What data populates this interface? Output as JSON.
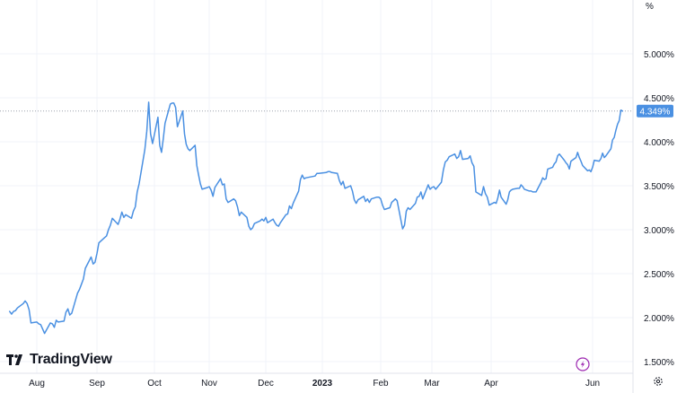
{
  "chart_data": {
    "type": "line",
    "unit_label": "%",
    "brand": "TradingView",
    "y_ticks": [
      "1.500%",
      "2.000%",
      "2.500%",
      "3.000%",
      "3.500%",
      "4.000%",
      "4.500%",
      "5.000%"
    ],
    "y_tick_values": [
      1.5,
      2.0,
      2.5,
      3.0,
      3.5,
      4.0,
      4.5,
      5.0
    ],
    "ylim": [
      1.45,
      5.5
    ],
    "x_ticks": [
      "Aug",
      "Sep",
      "Oct",
      "Nov",
      "Dec",
      "2023",
      "Feb",
      "Mar",
      "Apr",
      "Jun"
    ],
    "x_tick_dates": [
      "2022-08-01",
      "2022-09-01",
      "2022-10-01",
      "2022-11-01",
      "2022-12-01",
      "2023-01-01",
      "2023-02-01",
      "2023-03-01",
      "2023-04-01",
      "2023-06-01"
    ],
    "xlim": [
      "2022-07-18",
      "2023-06-19"
    ],
    "last_value_label": "4.349%",
    "last_value": 4.349,
    "line_color": "#4a90e2",
    "label_color": "#4a90e2",
    "grid": true,
    "series": [
      {
        "points": [
          [
            "2022-07-18",
            2.07
          ],
          [
            "2022-07-19",
            2.04
          ],
          [
            "2022-07-20",
            2.07
          ],
          [
            "2022-07-21",
            2.08
          ],
          [
            "2022-07-22",
            2.11
          ],
          [
            "2022-07-25",
            2.16
          ],
          [
            "2022-07-26",
            2.19
          ],
          [
            "2022-07-27",
            2.16
          ],
          [
            "2022-07-28",
            2.09
          ],
          [
            "2022-07-29",
            1.94
          ],
          [
            "2022-08-01",
            1.95
          ],
          [
            "2022-08-02",
            1.93
          ],
          [
            "2022-08-03",
            1.92
          ],
          [
            "2022-08-04",
            1.87
          ],
          [
            "2022-08-05",
            1.82
          ],
          [
            "2022-08-08",
            1.94
          ],
          [
            "2022-08-09",
            1.93
          ],
          [
            "2022-08-10",
            1.89
          ],
          [
            "2022-08-11",
            1.97
          ],
          [
            "2022-08-12",
            1.95
          ],
          [
            "2022-08-15",
            1.96
          ],
          [
            "2022-08-16",
            2.06
          ],
          [
            "2022-08-17",
            2.1
          ],
          [
            "2022-08-18",
            2.03
          ],
          [
            "2022-08-19",
            2.05
          ],
          [
            "2022-08-22",
            2.28
          ],
          [
            "2022-08-23",
            2.32
          ],
          [
            "2022-08-24",
            2.38
          ],
          [
            "2022-08-25",
            2.44
          ],
          [
            "2022-08-26",
            2.56
          ],
          [
            "2022-08-29",
            2.69
          ],
          [
            "2022-08-30",
            2.61
          ],
          [
            "2022-08-31",
            2.63
          ],
          [
            "2022-09-01",
            2.73
          ],
          [
            "2022-09-02",
            2.85
          ],
          [
            "2022-09-05",
            2.91
          ],
          [
            "2022-09-06",
            2.93
          ],
          [
            "2022-09-07",
            3.0
          ],
          [
            "2022-09-08",
            3.05
          ],
          [
            "2022-09-09",
            3.13
          ],
          [
            "2022-09-12",
            3.06
          ],
          [
            "2022-09-13",
            3.12
          ],
          [
            "2022-09-14",
            3.2
          ],
          [
            "2022-09-15",
            3.14
          ],
          [
            "2022-09-16",
            3.17
          ],
          [
            "2022-09-19",
            3.13
          ],
          [
            "2022-09-20",
            3.21
          ],
          [
            "2022-09-21",
            3.26
          ],
          [
            "2022-09-22",
            3.43
          ],
          [
            "2022-09-23",
            3.52
          ],
          [
            "2022-09-26",
            3.91
          ],
          [
            "2022-09-27",
            4.12
          ],
          [
            "2022-09-28",
            4.45
          ],
          [
            "2022-09-29",
            4.09
          ],
          [
            "2022-09-30",
            3.98
          ],
          [
            "2022-10-03",
            4.28
          ],
          [
            "2022-10-04",
            3.96
          ],
          [
            "2022-10-05",
            3.88
          ],
          [
            "2022-10-06",
            4.03
          ],
          [
            "2022-10-07",
            4.21
          ],
          [
            "2022-10-10",
            4.43
          ],
          [
            "2022-10-11",
            4.44
          ],
          [
            "2022-10-12",
            4.44
          ],
          [
            "2022-10-13",
            4.39
          ],
          [
            "2022-10-14",
            4.17
          ],
          [
            "2022-10-17",
            4.35
          ],
          [
            "2022-10-18",
            4.09
          ],
          [
            "2022-10-19",
            3.97
          ],
          [
            "2022-10-20",
            3.92
          ],
          [
            "2022-10-21",
            3.9
          ],
          [
            "2022-10-24",
            3.96
          ],
          [
            "2022-10-25",
            3.73
          ],
          [
            "2022-10-26",
            3.62
          ],
          [
            "2022-10-27",
            3.52
          ],
          [
            "2022-10-28",
            3.46
          ],
          [
            "2022-10-31",
            3.48
          ],
          [
            "2022-11-01",
            3.49
          ],
          [
            "2022-11-02",
            3.45
          ],
          [
            "2022-11-03",
            3.38
          ],
          [
            "2022-11-04",
            3.48
          ],
          [
            "2022-11-07",
            3.58
          ],
          [
            "2022-11-08",
            3.51
          ],
          [
            "2022-11-09",
            3.52
          ],
          [
            "2022-11-10",
            3.35
          ],
          [
            "2022-11-11",
            3.31
          ],
          [
            "2022-11-14",
            3.35
          ],
          [
            "2022-11-15",
            3.33
          ],
          [
            "2022-11-16",
            3.26
          ],
          [
            "2022-11-17",
            3.16
          ],
          [
            "2022-11-18",
            3.2
          ],
          [
            "2022-11-21",
            3.14
          ],
          [
            "2022-11-22",
            3.04
          ],
          [
            "2022-11-23",
            3.0
          ],
          [
            "2022-11-24",
            3.02
          ],
          [
            "2022-11-25",
            3.07
          ],
          [
            "2022-11-28",
            3.1
          ],
          [
            "2022-11-29",
            3.12
          ],
          [
            "2022-11-30",
            3.1
          ],
          [
            "2022-12-01",
            3.14
          ],
          [
            "2022-12-02",
            3.08
          ],
          [
            "2022-12-05",
            3.12
          ],
          [
            "2022-12-06",
            3.08
          ],
          [
            "2022-12-07",
            3.05
          ],
          [
            "2022-12-08",
            3.04
          ],
          [
            "2022-12-09",
            3.08
          ],
          [
            "2022-12-12",
            3.17
          ],
          [
            "2022-12-13",
            3.18
          ],
          [
            "2022-12-14",
            3.27
          ],
          [
            "2022-12-15",
            3.24
          ],
          [
            "2022-12-16",
            3.3
          ],
          [
            "2022-12-19",
            3.44
          ],
          [
            "2022-12-20",
            3.57
          ],
          [
            "2022-12-21",
            3.62
          ],
          [
            "2022-12-22",
            3.58
          ],
          [
            "2022-12-23",
            3.59
          ],
          [
            "2022-12-28",
            3.61
          ],
          [
            "2022-12-29",
            3.64
          ],
          [
            "2022-12-30",
            3.64
          ],
          [
            "2023-01-03",
            3.65
          ],
          [
            "2023-01-04",
            3.66
          ],
          [
            "2023-01-05",
            3.66
          ],
          [
            "2023-01-06",
            3.65
          ],
          [
            "2023-01-09",
            3.64
          ],
          [
            "2023-01-10",
            3.56
          ],
          [
            "2023-01-11",
            3.51
          ],
          [
            "2023-01-12",
            3.55
          ],
          [
            "2023-01-13",
            3.47
          ],
          [
            "2023-01-16",
            3.5
          ],
          [
            "2023-01-17",
            3.44
          ],
          [
            "2023-01-18",
            3.34
          ],
          [
            "2023-01-19",
            3.3
          ],
          [
            "2023-01-20",
            3.34
          ],
          [
            "2023-01-23",
            3.38
          ],
          [
            "2023-01-24",
            3.32
          ],
          [
            "2023-01-25",
            3.35
          ],
          [
            "2023-01-26",
            3.31
          ],
          [
            "2023-01-27",
            3.35
          ],
          [
            "2023-01-30",
            3.37
          ],
          [
            "2023-01-31",
            3.37
          ],
          [
            "2023-02-01",
            3.35
          ],
          [
            "2023-02-02",
            3.28
          ],
          [
            "2023-02-03",
            3.23
          ],
          [
            "2023-02-06",
            3.25
          ],
          [
            "2023-02-07",
            3.31
          ],
          [
            "2023-02-08",
            3.33
          ],
          [
            "2023-02-09",
            3.35
          ],
          [
            "2023-02-10",
            3.33
          ],
          [
            "2023-02-13",
            3.01
          ],
          [
            "2023-02-14",
            3.05
          ],
          [
            "2023-02-15",
            3.21
          ],
          [
            "2023-02-16",
            3.25
          ],
          [
            "2023-02-17",
            3.23
          ],
          [
            "2023-02-20",
            3.3
          ],
          [
            "2023-02-21",
            3.37
          ],
          [
            "2023-02-22",
            3.38
          ],
          [
            "2023-02-23",
            3.43
          ],
          [
            "2023-02-24",
            3.35
          ],
          [
            "2023-02-27",
            3.51
          ],
          [
            "2023-02-28",
            3.46
          ],
          [
            "2023-03-01",
            3.48
          ],
          [
            "2023-03-02",
            3.49
          ],
          [
            "2023-03-03",
            3.46
          ],
          [
            "2023-03-06",
            3.54
          ],
          [
            "2023-03-07",
            3.68
          ],
          [
            "2023-03-08",
            3.77
          ],
          [
            "2023-03-09",
            3.79
          ],
          [
            "2023-03-10",
            3.83
          ],
          [
            "2023-03-13",
            3.86
          ],
          [
            "2023-03-14",
            3.81
          ],
          [
            "2023-03-15",
            3.83
          ],
          [
            "2023-03-16",
            3.9
          ],
          [
            "2023-03-17",
            3.8
          ],
          [
            "2023-03-20",
            3.81
          ],
          [
            "2023-03-21",
            3.84
          ],
          [
            "2023-03-22",
            3.76
          ],
          [
            "2023-03-23",
            3.72
          ],
          [
            "2023-03-24",
            3.43
          ],
          [
            "2023-03-27",
            3.39
          ],
          [
            "2023-03-28",
            3.49
          ],
          [
            "2023-03-29",
            3.41
          ],
          [
            "2023-03-30",
            3.37
          ],
          [
            "2023-03-31",
            3.28
          ],
          [
            "2023-04-03",
            3.31
          ],
          [
            "2023-04-04",
            3.3
          ],
          [
            "2023-04-05",
            3.36
          ],
          [
            "2023-04-06",
            3.45
          ],
          [
            "2023-04-07",
            3.37
          ],
          [
            "2023-04-10",
            3.29
          ],
          [
            "2023-04-11",
            3.34
          ],
          [
            "2023-04-12",
            3.43
          ],
          [
            "2023-04-13",
            3.45
          ],
          [
            "2023-04-14",
            3.46
          ],
          [
            "2023-04-17",
            3.47
          ],
          [
            "2023-04-18",
            3.47
          ],
          [
            "2023-04-19",
            3.51
          ],
          [
            "2023-04-20",
            3.49
          ],
          [
            "2023-04-21",
            3.46
          ],
          [
            "2023-04-24",
            3.44
          ],
          [
            "2023-04-25",
            3.44
          ],
          [
            "2023-04-26",
            3.43
          ],
          [
            "2023-04-27",
            3.43
          ],
          [
            "2023-04-28",
            3.43
          ],
          [
            "2023-05-01",
            3.54
          ],
          [
            "2023-05-02",
            3.59
          ],
          [
            "2023-05-03",
            3.57
          ],
          [
            "2023-05-04",
            3.58
          ],
          [
            "2023-05-05",
            3.69
          ],
          [
            "2023-05-08",
            3.71
          ],
          [
            "2023-05-09",
            3.75
          ],
          [
            "2023-05-10",
            3.77
          ],
          [
            "2023-05-11",
            3.84
          ],
          [
            "2023-05-12",
            3.86
          ],
          [
            "2023-05-15",
            3.79
          ],
          [
            "2023-05-16",
            3.76
          ],
          [
            "2023-05-17",
            3.74
          ],
          [
            "2023-05-18",
            3.69
          ],
          [
            "2023-05-19",
            3.78
          ],
          [
            "2023-05-22",
            3.82
          ],
          [
            "2023-05-23",
            3.88
          ],
          [
            "2023-05-24",
            3.82
          ],
          [
            "2023-05-25",
            3.78
          ],
          [
            "2023-05-26",
            3.73
          ],
          [
            "2023-05-29",
            3.67
          ],
          [
            "2023-05-30",
            3.68
          ],
          [
            "2023-05-31",
            3.66
          ],
          [
            "2023-06-01",
            3.71
          ],
          [
            "2023-06-02",
            3.79
          ],
          [
            "2023-06-05",
            3.78
          ],
          [
            "2023-06-06",
            3.81
          ],
          [
            "2023-06-07",
            3.87
          ],
          [
            "2023-06-08",
            3.82
          ],
          [
            "2023-06-09",
            3.84
          ],
          [
            "2023-06-12",
            3.92
          ],
          [
            "2023-06-13",
            4.02
          ],
          [
            "2023-06-14",
            4.05
          ],
          [
            "2023-06-15",
            4.13
          ],
          [
            "2023-06-16",
            4.2
          ],
          [
            "2023-06-17",
            4.24
          ],
          [
            "2023-06-18",
            4.36
          ],
          [
            "2023-06-19",
            4.349
          ]
        ]
      }
    ]
  }
}
